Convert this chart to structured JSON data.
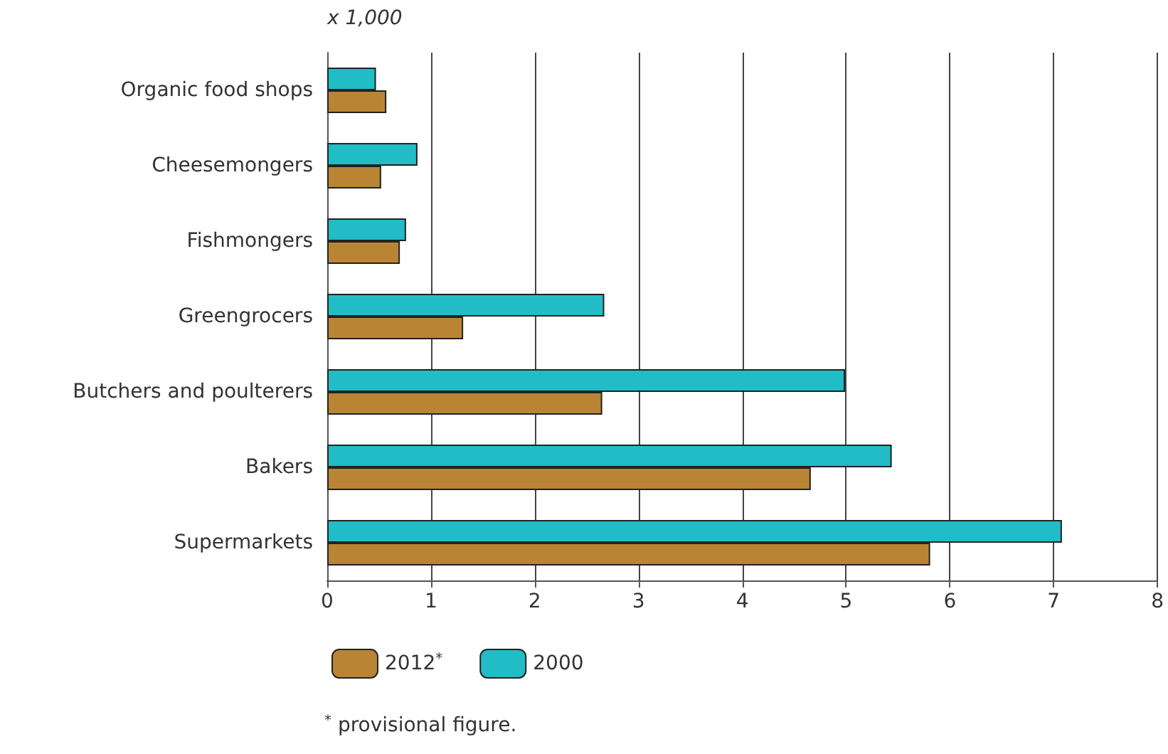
{
  "chart_data": {
    "type": "bar",
    "orientation": "horizontal",
    "xlabel": "x 1,000",
    "categories": [
      "Organic food shops",
      "Cheesemongers",
      "Fishmongers",
      "Greengrocers",
      "Butchers and poulterers",
      "Bakers",
      "Supermarkets"
    ],
    "series": [
      {
        "name": "2012$^{*}$",
        "color": "#b98534",
        "values": [
          0.57,
          0.52,
          0.7,
          1.31,
          2.65,
          4.66,
          5.81
        ]
      },
      {
        "name": "2000",
        "color": "#22bcc6",
        "values": [
          0.47,
          0.87,
          0.76,
          2.67,
          4.99,
          5.44,
          7.08
        ]
      }
    ],
    "xlim": [
      0,
      8
    ],
    "xticks": [
      0,
      1,
      2,
      3,
      4,
      5,
      6,
      7,
      8
    ],
    "grid": "x",
    "legend": "bottom left",
    "annotations": [
      "$^{*}$ provisional figure."
    ]
  }
}
